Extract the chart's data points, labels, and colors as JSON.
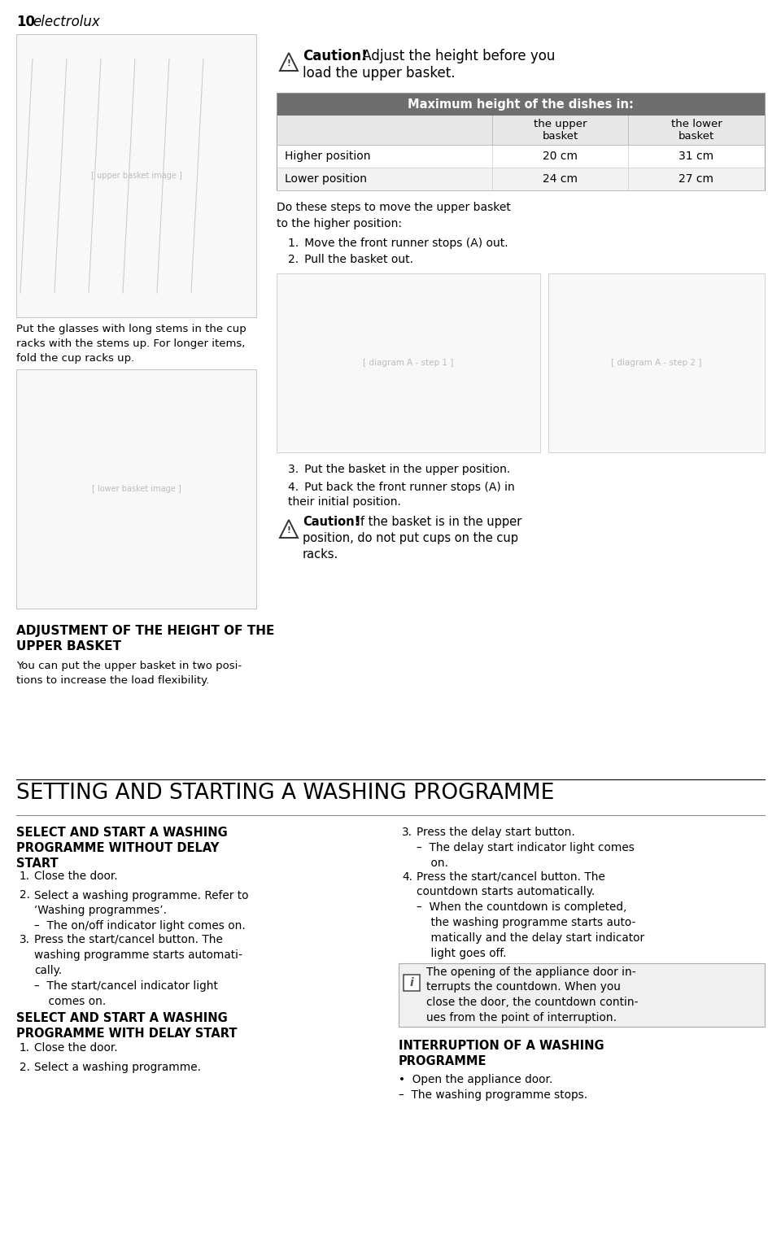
{
  "page_number": "10",
  "brand": "electrolux",
  "background_color": "#ffffff",
  "text_color": "#000000",
  "table": {
    "title": "Maximum height of the dishes in:",
    "col2_header": "the upper\nbasket",
    "col3_header": "the lower\nbasket",
    "row1_label": "Higher position",
    "row1_col2": "20 cm",
    "row1_col3": "31 cm",
    "row2_label": "Lower position",
    "row2_col2": "24 cm",
    "row2_col3": "27 cm"
  },
  "left_caption1": "Put the glasses with long stems in the cup\nracks with the stems up. For longer items,\nfold the cup racks up.",
  "section_heading": "ADJUSTMENT OF THE HEIGHT OF THE\nUPPER BASKET",
  "section_body": "You can put the upper basket in two posi-\ntions to increase the load flexibility.",
  "big_heading": "SETTING AND STARTING A WASHING PROGRAMME",
  "left_col_bold1": "SELECT AND START A WASHING\nPROGRAMME WITHOUT DELAY\nSTART",
  "left_col_steps1": [
    {
      "num": "1.",
      "text": "Close the door."
    },
    {
      "num": "2.",
      "text": "Select a washing programme. Refer to\n‘Washing programmes’.\n–  The on/off indicator light comes on."
    },
    {
      "num": "3.",
      "text": "Press the start/cancel button. The\nwashing programme starts automati-\ncally.\n–  The start/cancel indicator light\n    comes on."
    }
  ],
  "left_col_bold2": "SELECT AND START A WASHING\nPROGRAMME WITH DELAY START",
  "left_col_steps2": [
    {
      "num": "1.",
      "text": "Close the door."
    },
    {
      "num": "2.",
      "text": "Select a washing programme."
    }
  ],
  "right_col_steps": [
    {
      "num": "3.",
      "text": "Press the delay start button.\n–  The delay start indicator light comes\n    on."
    },
    {
      "num": "4.",
      "text": "Press the start/cancel button. The\ncountdown starts automatically.\n–  When the countdown is completed,\n    the washing programme starts auto-\n    matically and the delay start indicator\n    light goes off."
    }
  ],
  "info_box": "The opening of the appliance door in-\nterrupts the countdown. When you\nclose the door, the countdown contin-\nues from the point of interruption.",
  "right_bold": "INTERRUPTION OF A WASHING\nPROGRAMME",
  "right_bullet": "•  Open the appliance door.\n–  The washing programme stops.",
  "steps_intro": "Do these steps to move the upper basket\nto the higher position:",
  "steps_top": [
    "Move the front runner stops (A) out.",
    "Pull the basket out."
  ],
  "steps_bottom_3": "Put the basket in the upper position.",
  "steps_bottom_4": "Put back the front runner stops (A) in\ntheir initial position."
}
